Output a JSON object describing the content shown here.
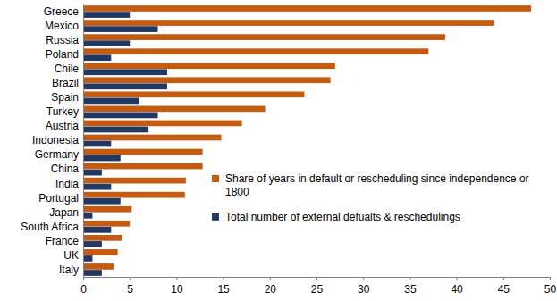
{
  "chart_data": {
    "type": "bar",
    "orientation": "horizontal",
    "categories": [
      "Greece",
      "Mexico",
      "Russia",
      "Poland",
      "Chile",
      "Brazil",
      "Spain",
      "Turkey",
      "Austria",
      "Indonesia",
      "Germany",
      "China",
      "India",
      "Portugal",
      "Japan",
      "South Africa",
      "France",
      "UK",
      "Italy"
    ],
    "series": [
      {
        "name": "Share of years in default or rescheduling since independence or 1800",
        "color": "#c55a11",
        "values": [
          48,
          44,
          38.8,
          37,
          27,
          26.5,
          23.7,
          19.5,
          17,
          14.8,
          12.8,
          12.8,
          11,
          10.9,
          5.2,
          5,
          4.2,
          3.7,
          3.3
        ]
      },
      {
        "name": "Total number of external defualts & reschedulings",
        "color": "#1f3864",
        "values": [
          5,
          8,
          5,
          3,
          9,
          9,
          6,
          8,
          7,
          3,
          4,
          2,
          3,
          4,
          1,
          3,
          2,
          1,
          2
        ]
      }
    ],
    "xlim": [
      0,
      50
    ],
    "xticks": [
      0,
      5,
      10,
      15,
      20,
      25,
      30,
      35,
      40,
      45,
      50
    ],
    "grid": false,
    "legend": "right"
  }
}
